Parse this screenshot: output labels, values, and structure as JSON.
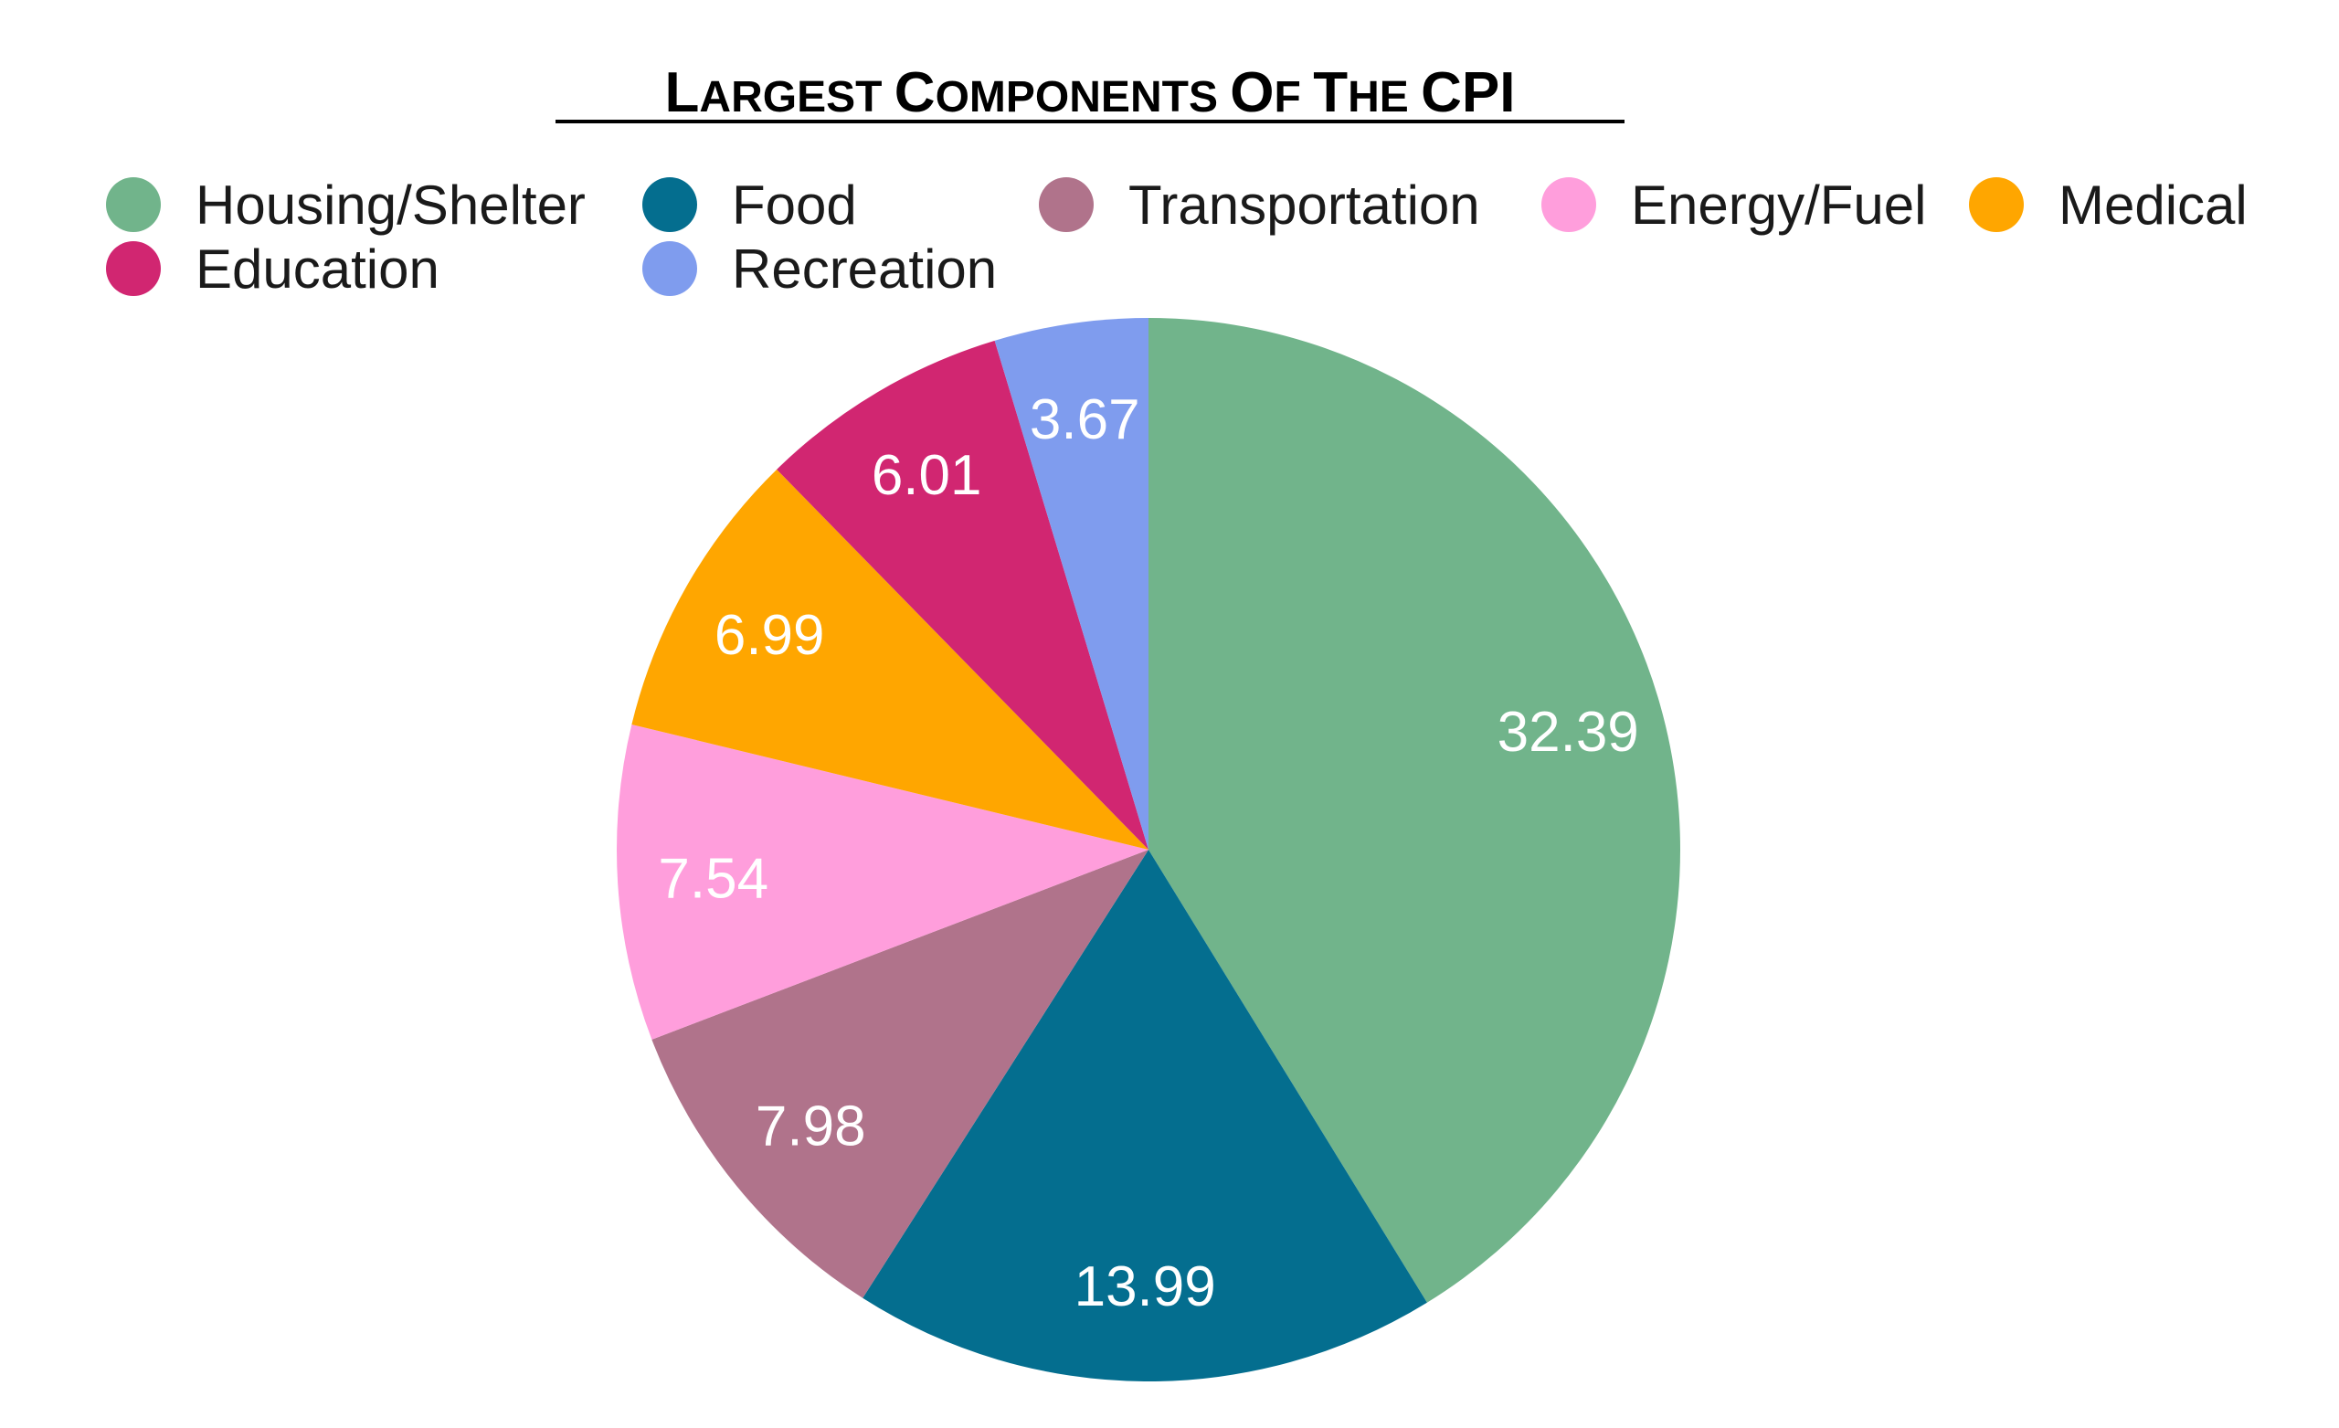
{
  "chart_data": {
    "type": "pie",
    "title": "Largest Components Of The CPI",
    "labels": [
      "Housing/Shelter",
      "Food",
      "Transportation",
      "Energy/Fuel",
      "Medical",
      "Education",
      "Recreation"
    ],
    "values": [
      32.39,
      13.99,
      7.98,
      7.54,
      6.99,
      6.01,
      3.67
    ],
    "data_labels": [
      "32.39",
      "13.99",
      "7.98",
      "7.54",
      "6.99",
      "6.01",
      "3.67"
    ],
    "colors": [
      "#71b48b",
      "#046e8f",
      "#b0738b",
      "#ff9edc",
      "#ffa600",
      "#d12671",
      "#7f9cee"
    ],
    "legend_placement": "top",
    "start": "12 o'clock",
    "direction": "clockwise"
  }
}
